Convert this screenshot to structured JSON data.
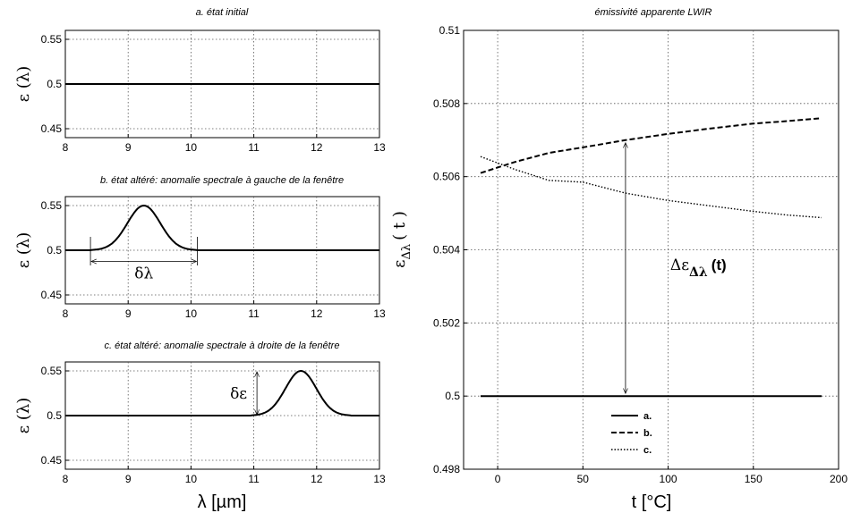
{
  "chart_data": [
    {
      "type": "line",
      "title": "a. état initial",
      "ylabel": "ε (λ)",
      "xlim": [
        8,
        13
      ],
      "ylim": [
        0.44,
        0.56
      ],
      "xticks": [
        8,
        9,
        10,
        11,
        12,
        13
      ],
      "yticks": [
        0.45,
        0.5,
        0.55
      ],
      "ytick_labels": [
        "0.45",
        "0.5",
        "0.55"
      ],
      "grid": true,
      "series": [
        {
          "x": [
            8,
            13
          ],
          "y": [
            0.5,
            0.5
          ]
        }
      ]
    },
    {
      "type": "line",
      "title": "b. état altéré: anomalie spectrale à gauche de la fenêtre",
      "ylabel": "ε (λ)",
      "xlim": [
        8,
        13
      ],
      "ylim": [
        0.44,
        0.56
      ],
      "xticks": [
        8,
        9,
        10,
        11,
        12,
        13
      ],
      "yticks": [
        0.45,
        0.5,
        0.55
      ],
      "ytick_labels": [
        "0.45",
        "0.5",
        "0.55"
      ],
      "grid": true,
      "bump": {
        "center": 9.25,
        "start": 8.4,
        "end": 10.1,
        "amplitude": 0.05
      },
      "annotations": [
        {
          "text": "δλ",
          "from_x": 8.4,
          "to_x": 10.1,
          "y": 0.4875
        }
      ]
    },
    {
      "type": "line",
      "title": "c. état altéré: anomalie spectrale à droite de la fenêtre",
      "ylabel": "ε (λ)",
      "xlabel": "λ [µm]",
      "xlim": [
        8,
        13
      ],
      "ylim": [
        0.44,
        0.56
      ],
      "xticks": [
        8,
        9,
        10,
        11,
        12,
        13
      ],
      "yticks": [
        0.45,
        0.5,
        0.55
      ],
      "ytick_labels": [
        "0.45",
        "0.5",
        "0.55"
      ],
      "grid": true,
      "bump": {
        "center": 11.75,
        "start": 10.95,
        "end": 12.55,
        "amplitude": 0.05
      },
      "annotations": [
        {
          "text": "δε",
          "x": 11.05,
          "from_y": 0.5,
          "to_y": 0.55
        }
      ]
    },
    {
      "type": "line",
      "title": "émissivité apparente LWIR",
      "ylabel": "ε",
      "ylabel_sub": "Δλ",
      "ylabel_suffix": "( t )",
      "xlabel": "t [°C]",
      "xlim": [
        -20,
        200
      ],
      "ylim": [
        0.498,
        0.51
      ],
      "xticks": [
        0,
        50,
        100,
        150,
        200
      ],
      "yticks": [
        0.498,
        0.5,
        0.502,
        0.504,
        0.506,
        0.508,
        0.51
      ],
      "ytick_labels": [
        "0.498",
        "0.5",
        "0.502",
        "0.504",
        "0.506",
        "0.508",
        "0.51"
      ],
      "grid": true,
      "legend": "bottom-center",
      "series": [
        {
          "name": "a.",
          "style": "solid",
          "x": [
            -10,
            190
          ],
          "y": [
            0.5,
            0.5
          ]
        },
        {
          "name": "b.",
          "style": "dashed",
          "x": [
            -10,
            10,
            30,
            50,
            75,
            100,
            125,
            150,
            170,
            190
          ],
          "y": [
            0.5061,
            0.5064,
            0.50665,
            0.5068,
            0.507,
            0.50717,
            0.50732,
            0.50745,
            0.50752,
            0.5076
          ]
        },
        {
          "name": "c.",
          "style": "dotted",
          "x": [
            -10,
            10,
            30,
            50,
            75,
            100,
            125,
            150,
            170,
            190
          ],
          "y": [
            0.50655,
            0.5062,
            0.5059,
            0.50585,
            0.50555,
            0.50535,
            0.5052,
            0.50505,
            0.50495,
            0.50488
          ]
        }
      ],
      "annotations": [
        {
          "text": "Δε",
          "sub": "Δλ",
          "suffix": "(t)",
          "x": 75,
          "from_y": 0.5,
          "to_y": 0.507
        }
      ]
    }
  ]
}
